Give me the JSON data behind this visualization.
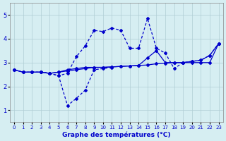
{
  "xlabel": "Graphe des températures (°C)",
  "background_color": "#d6eef2",
  "grid_color": "#b0cdd4",
  "line_color": "#0000cc",
  "x_ticks": [
    0,
    1,
    2,
    3,
    4,
    5,
    6,
    7,
    8,
    9,
    10,
    11,
    12,
    13,
    14,
    15,
    16,
    17,
    18,
    19,
    20,
    21,
    22,
    23
  ],
  "ylim": [
    0.5,
    5.5
  ],
  "xlim": [
    -0.5,
    23.5
  ],
  "yticks": [
    1,
    2,
    3,
    4,
    5
  ],
  "line1_x": [
    0,
    1,
    2,
    3,
    4,
    5,
    6,
    7,
    8,
    9,
    10,
    11,
    12,
    13,
    14,
    15,
    16,
    17,
    18,
    19,
    20,
    21,
    22,
    23
  ],
  "line1_y": [
    2.7,
    2.6,
    2.6,
    2.6,
    2.55,
    2.6,
    2.65,
    2.7,
    2.75,
    2.8,
    2.8,
    2.82,
    2.84,
    2.86,
    2.88,
    2.9,
    2.95,
    2.97,
    3.0,
    3.0,
    3.0,
    3.0,
    3.0,
    3.8
  ],
  "line2_x": [
    0,
    1,
    2,
    3,
    4,
    5,
    6,
    7,
    8,
    9,
    10,
    11,
    12,
    13,
    14,
    15,
    16,
    17,
    18,
    19,
    20,
    21,
    22,
    23
  ],
  "line2_y": [
    2.7,
    2.6,
    2.6,
    2.6,
    2.55,
    2.6,
    2.7,
    2.75,
    2.8,
    2.8,
    2.8,
    2.82,
    2.84,
    2.86,
    2.88,
    3.2,
    3.5,
    3.0,
    3.0,
    3.0,
    3.05,
    3.1,
    3.3,
    3.8
  ],
  "line3_x": [
    0,
    1,
    2,
    3,
    4,
    5,
    6,
    7,
    8,
    9,
    10,
    11,
    12,
    13,
    14,
    15,
    16,
    17,
    18,
    19,
    20,
    21,
    22,
    23
  ],
  "line3_y": [
    2.7,
    2.6,
    2.6,
    2.6,
    2.55,
    2.45,
    2.55,
    3.25,
    3.7,
    4.35,
    4.3,
    4.45,
    4.35,
    3.6,
    3.6,
    4.85,
    3.6,
    3.4,
    2.75,
    3.0,
    3.05,
    3.1,
    3.3,
    3.8
  ],
  "line4_x": [
    3,
    4,
    5,
    6,
    7,
    8,
    9,
    10,
    11
  ],
  "line4_y": [
    2.6,
    2.55,
    2.45,
    1.2,
    1.5,
    1.85,
    2.7,
    2.75,
    2.8
  ]
}
